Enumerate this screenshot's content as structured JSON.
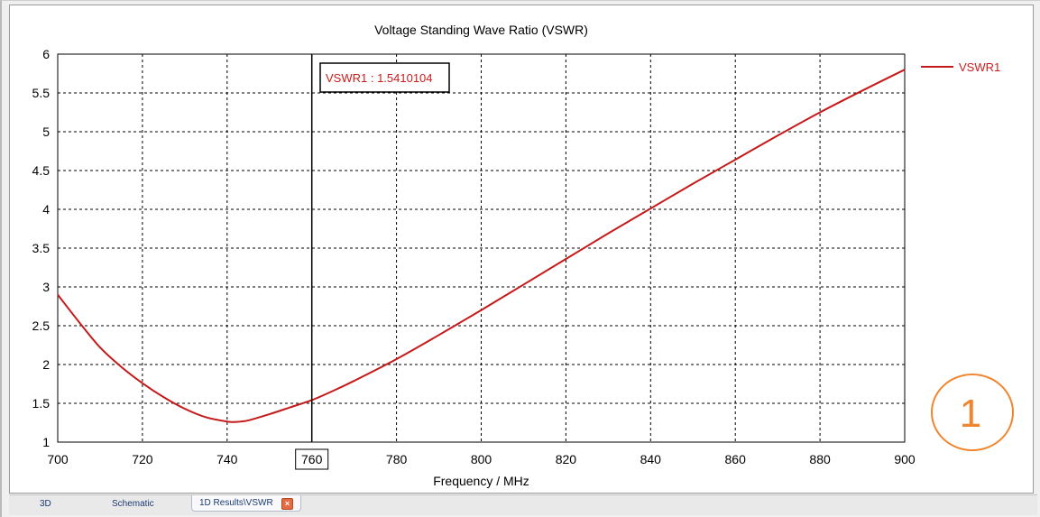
{
  "tabs": [
    {
      "label": "3D"
    },
    {
      "label": "Schematic"
    },
    {
      "label": "1D Results\\VSWR",
      "active": true
    }
  ],
  "close_symbol": "×",
  "badge": "1",
  "colors": {
    "curve": "#c41a1a",
    "marker_line": "#000000",
    "grid": "#000000",
    "badge": "#f0852d"
  },
  "marker": {
    "label": "VSWR1 : 1.5410104",
    "x": 760,
    "x_label": "760"
  },
  "chart_data": {
    "type": "line",
    "title": "Voltage Standing Wave Ratio (VSWR)",
    "xlabel": "Frequency / MHz",
    "ylabel": "",
    "xlim": [
      700,
      900
    ],
    "ylim": [
      1,
      6
    ],
    "x_ticks": [
      "700",
      "720",
      "740",
      "760",
      "780",
      "800",
      "820",
      "840",
      "860",
      "880",
      "900"
    ],
    "y_ticks": [
      "1",
      "1.5",
      "2",
      "2.5",
      "3",
      "3.5",
      "4",
      "4.5",
      "5",
      "5.5",
      "6"
    ],
    "grid": true,
    "grid_style": "dashed",
    "legend_position": "top-right",
    "series": [
      {
        "name": "VSWR1",
        "x": [
          700,
          705,
          710,
          715,
          720,
          725,
          730,
          735,
          740,
          742,
          745,
          750,
          755,
          760,
          765,
          770,
          780,
          790,
          800,
          810,
          820,
          830,
          840,
          850,
          860,
          870,
          880,
          890,
          900
        ],
        "y": [
          2.9,
          2.55,
          2.22,
          1.97,
          1.76,
          1.58,
          1.43,
          1.32,
          1.265,
          1.26,
          1.28,
          1.36,
          1.45,
          1.541,
          1.66,
          1.79,
          2.07,
          2.38,
          2.7,
          3.03,
          3.36,
          3.69,
          4.01,
          4.33,
          4.64,
          4.95,
          5.25,
          5.53,
          5.8
        ]
      }
    ]
  }
}
